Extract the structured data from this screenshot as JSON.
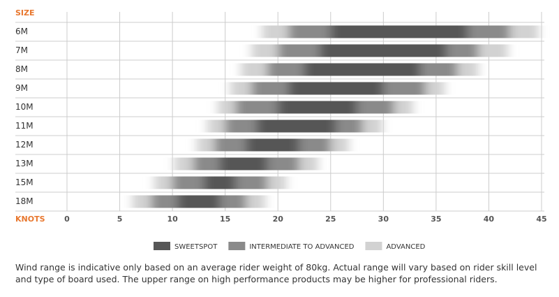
{
  "chart_data": {
    "type": "range-bar",
    "y_label": "SIZE",
    "x_label": "KNOTS",
    "categories": [
      "6M",
      "7M",
      "8M",
      "9M",
      "10M",
      "11M",
      "12M",
      "13M",
      "15M",
      "18M"
    ],
    "series": [
      {
        "name": "ADVANCED",
        "color": "#d2d2d2",
        "values": [
          [
            18.5,
            44.7
          ],
          [
            17.5,
            41.8
          ],
          [
            16.5,
            39
          ],
          [
            15.5,
            35.8
          ],
          [
            14.3,
            32.8
          ],
          [
            13.3,
            29.9
          ],
          [
            12.3,
            26.7
          ],
          [
            10.2,
            23.8
          ],
          [
            8.3,
            20.8
          ],
          [
            6.2,
            18.8
          ]
        ]
      },
      {
        "name": "INTERMEDIATE TO ADVANCED",
        "color": "#8a8a8a",
        "values": [
          [
            21,
            42
          ],
          [
            20,
            39
          ],
          [
            19,
            37
          ],
          [
            17.5,
            34
          ],
          [
            16,
            31
          ],
          [
            15,
            28
          ],
          [
            14,
            25
          ],
          [
            12,
            22
          ],
          [
            10,
            19
          ],
          [
            8,
            17
          ]
        ]
      },
      {
        "name": "SWEETSPOT",
        "color": "#575757",
        "values": [
          [
            25,
            38
          ],
          [
            24,
            36
          ],
          [
            22.5,
            33.5
          ],
          [
            21,
            30
          ],
          [
            20,
            27.5
          ],
          [
            18,
            25.5
          ],
          [
            17,
            22
          ],
          [
            14.5,
            19
          ],
          [
            13,
            16
          ],
          [
            10.5,
            14.5
          ]
        ]
      }
    ],
    "xlim": [
      0,
      45
    ],
    "xticks": [
      0,
      5,
      10,
      15,
      20,
      25,
      30,
      35,
      40,
      45
    ],
    "grid": true,
    "caption": "Wind range is indicative only based on an average rider weight of 80kg. Actual range will vary based on rider skill level and type of board used. The upper range on high performance products may be higher for professional riders."
  }
}
